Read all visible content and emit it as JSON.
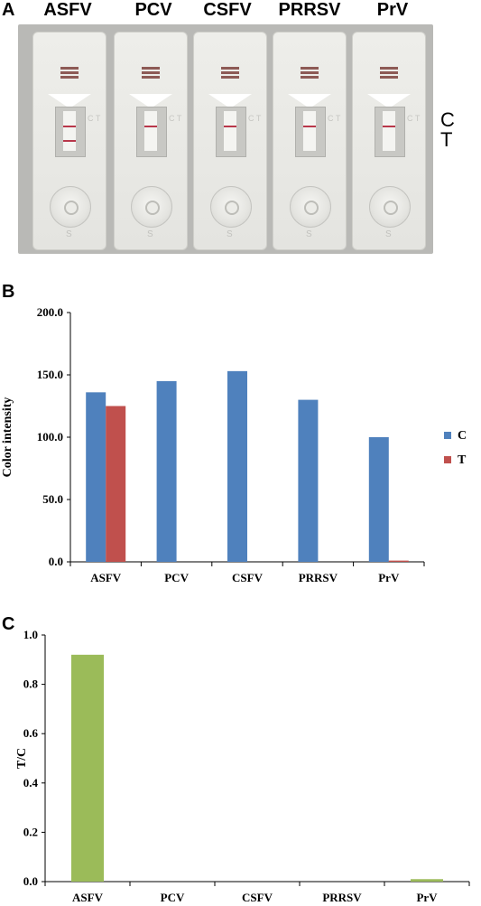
{
  "panel_a": {
    "letter": "A",
    "strip_labels": [
      "ASFV",
      "PCV",
      "CSFV",
      "PRRSV",
      "PrV"
    ],
    "side_labels": [
      "C",
      "T"
    ],
    "strip_marks": {
      "ct": "C T",
      "s": "S"
    },
    "test_line_visible": [
      true,
      false,
      false,
      false,
      false
    ]
  },
  "chart_data": [
    {
      "panel": "B",
      "type": "bar",
      "categories": [
        "ASFV",
        "PCV",
        "CSFV",
        "PRRSV",
        "PrV"
      ],
      "series": [
        {
          "name": "C",
          "color": "#4f81bd",
          "values": [
            136,
            145,
            153,
            130,
            100
          ]
        },
        {
          "name": "T",
          "color": "#c0504d",
          "values": [
            125,
            0,
            0,
            0,
            1
          ]
        }
      ],
      "title": "",
      "xlabel": "",
      "ylabel": "Color intensity",
      "ylim": [
        0,
        200
      ],
      "yticks": [
        "0.0",
        "50.0",
        "100.0",
        "150.0",
        "200.0"
      ],
      "legend": "right",
      "grid": false
    },
    {
      "panel": "C",
      "type": "bar",
      "categories": [
        "ASFV",
        "PCV",
        "CSFV",
        "PRRSV",
        "PrV"
      ],
      "series": [
        {
          "color": "#9bbb59",
          "values": [
            0.92,
            0,
            0,
            0,
            0.01
          ]
        }
      ],
      "title": "",
      "xlabel": "",
      "ylabel": "T/C",
      "ylim": [
        0,
        1
      ],
      "yticks": [
        "0.0",
        "0.2",
        "0.4",
        "0.6",
        "0.8",
        "1.0"
      ],
      "grid": false
    }
  ]
}
